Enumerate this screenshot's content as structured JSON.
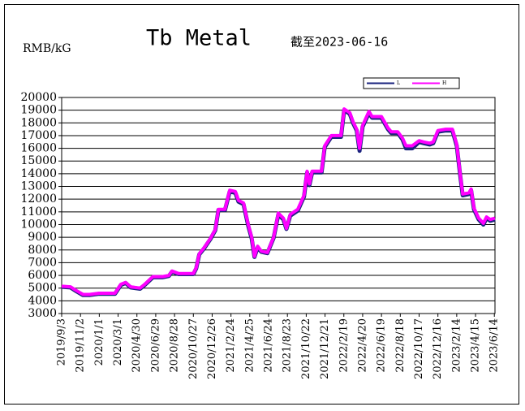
{
  "chart_data": {
    "type": "line",
    "title": "Tb Metal",
    "subtitle": "截至2023-06-16",
    "y_label": "RMB/kG",
    "x": [
      "2019/9/3",
      "2019/10/1",
      "2019/10/20",
      "2019/11/10",
      "2019/12/1",
      "2019/12/31",
      "2020/2/1",
      "2020/2/20",
      "2020/3/10",
      "2020/3/25",
      "2020/4/10",
      "2020/5/10",
      "2020/5/25",
      "2020/6/20",
      "2020/7/20",
      "2020/8/10",
      "2020/8/20",
      "2020/9/10",
      "2020/10/10",
      "2020/10/27",
      "2020/11/5",
      "2020/11/15",
      "2020/12/1",
      "2020/12/20",
      "2021/1/5",
      "2021/1/15",
      "2021/2/5",
      "2021/2/20",
      "2021/3/10",
      "2021/3/20",
      "2021/4/5",
      "2021/4/20",
      "2021/5/1",
      "2021/5/10",
      "2021/5/20",
      "2021/6/1",
      "2021/6/20",
      "2021/7/10",
      "2021/7/25",
      "2021/8/10",
      "2021/8/20",
      "2021/9/1",
      "2021/9/25",
      "2021/10/15",
      "2021/10/25",
      "2021/11/1",
      "2021/11/10",
      "2021/12/10",
      "2021/12/20",
      "2022/1/10",
      "2022/2/10",
      "2022/2/20",
      "2022/3/10",
      "2022/3/20",
      "2022/4/1",
      "2022/4/10",
      "2022/4/20",
      "2022/5/10",
      "2022/5/20",
      "2022/6/19",
      "2022/7/10",
      "2022/7/20",
      "2022/8/10",
      "2022/8/25",
      "2022/9/5",
      "2022/9/25",
      "2022/10/17",
      "2022/11/1",
      "2022/11/20",
      "2022/12/1",
      "2022/12/16",
      "2023/1/10",
      "2023/1/31",
      "2023/2/14",
      "2023/2/25",
      "2023/3/5",
      "2023/3/25",
      "2023/4/1",
      "2023/4/10",
      "2023/4/25",
      "2023/5/10",
      "2023/5/20",
      "2023/6/1",
      "2023/6/16"
    ],
    "series": [
      {
        "name": "L",
        "color": "#1a237e",
        "values": [
          5100,
          5050,
          4750,
          4450,
          4450,
          4550,
          4550,
          4550,
          5250,
          5400,
          5050,
          4950,
          5250,
          5850,
          5850,
          5950,
          6300,
          6100,
          6100,
          6100,
          6550,
          7650,
          8150,
          8850,
          9550,
          11150,
          11150,
          12600,
          12500,
          11800,
          11600,
          9900,
          8900,
          7450,
          8200,
          7850,
          7750,
          8950,
          10800,
          10400,
          9650,
          10700,
          11100,
          12200,
          14100,
          13100,
          14100,
          14100,
          16100,
          16900,
          16900,
          19000,
          18700,
          18000,
          17400,
          15800,
          17700,
          18800,
          18400,
          18400,
          17500,
          17200,
          17200,
          16700,
          16000,
          16000,
          16500,
          16400,
          16300,
          16400,
          17300,
          17400,
          17400,
          16200,
          13900,
          12300,
          12400,
          12700,
          11200,
          10400,
          10000,
          10500,
          10300,
          10400
        ]
      },
      {
        "name": "H",
        "color": "#ff00ff",
        "values": [
          5150,
          5100,
          4800,
          4500,
          4500,
          4600,
          4600,
          4600,
          5300,
          5450,
          5100,
          5000,
          5300,
          5900,
          5900,
          6000,
          6350,
          6150,
          6150,
          6150,
          6600,
          7700,
          8200,
          8900,
          9600,
          11200,
          11200,
          12700,
          12600,
          11900,
          11700,
          10000,
          9000,
          7500,
          8300,
          7900,
          7800,
          9000,
          10900,
          10500,
          9700,
          10800,
          11200,
          12300,
          14200,
          13200,
          14200,
          14200,
          16200,
          17000,
          17000,
          19100,
          18800,
          18100,
          17500,
          16000,
          17800,
          18900,
          18500,
          18500,
          17600,
          17300,
          17300,
          16800,
          16200,
          16200,
          16600,
          16500,
          16400,
          16500,
          17400,
          17500,
          17500,
          16300,
          14000,
          12400,
          12500,
          12800,
          11300,
          10500,
          10100,
          10600,
          10400,
          10500
        ]
      }
    ],
    "xlim": [
      "2019/9/3",
      "2023/6/16"
    ],
    "xticks": [
      "2019/9/3",
      "2019/11/2",
      "2020/1/1",
      "2020/3/1",
      "2020/4/30",
      "2020/6/29",
      "2020/8/28",
      "2020/10/27",
      "2020/12/26",
      "2021/2/24",
      "2021/4/25",
      "2021/6/24",
      "2021/8/23",
      "2021/10/22",
      "2021/12/21",
      "2022/2/19",
      "2022/4/20",
      "2022/6/19",
      "2022/8/18",
      "2022/10/17",
      "2022/12/16",
      "2023/2/14",
      "2023/4/15",
      "2023/6/14"
    ],
    "ylim": [
      3000,
      20000
    ],
    "yticks": [
      3000,
      4000,
      5000,
      6000,
      7000,
      8000,
      9000,
      10000,
      11000,
      12000,
      13000,
      14000,
      15000,
      16000,
      17000,
      18000,
      19000,
      20000
    ],
    "grid": true
  }
}
